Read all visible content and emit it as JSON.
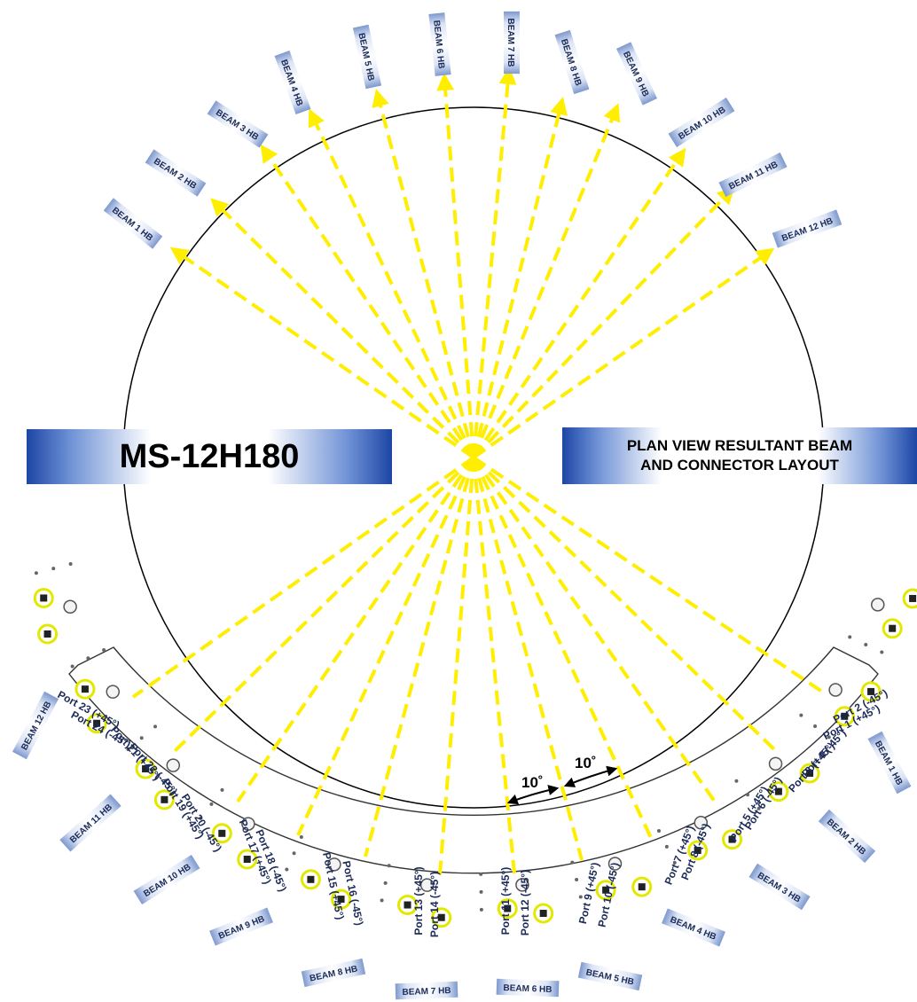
{
  "title": "MS-12H180",
  "subtitle_line1": "PLAN VIEW RESULTANT BEAM",
  "subtitle_line2": "AND CONNECTOR LAYOUT",
  "colors": {
    "beam_line": "#ffee00",
    "banner_dark": "#1c46a5",
    "tag_gradient": "#7e99cf",
    "port_ring": "#e3e800",
    "label_text": "#1b2a57"
  },
  "beams": [
    "BEAM 1 HB",
    "BEAM 2 HB",
    "BEAM 3 HB",
    "BEAM 4 HB",
    "BEAM 5 HB",
    "BEAM 6 HB",
    "BEAM 7 HB",
    "BEAM 8 HB",
    "BEAM 9 HB",
    "BEAM 10 HB",
    "BEAM 11 HB",
    "BEAM 12 HB"
  ],
  "ports": [
    "Port 1 (+45°)",
    "Port 2 (-45°)",
    "Port 3 (+45°)",
    "Port 4 (-45°)",
    "Port 5 (+45°)",
    "Port 6 (-45°)",
    "Port 7 (+45°)",
    "Port 8 (-45°)",
    "Port 9 (+45°)",
    "Port 10 (-45°)",
    "Port 11 (+45°)",
    "Port 12 (-45°)",
    "Port 13 (+45°)",
    "Port 14 (-45°)",
    "Port 15 (+45°)",
    "Port 16 (-45°)",
    "Port 17 (+45°)",
    "Port 18 (-45°)",
    "Port 19 (+45°)",
    "Port 20 (-45°)",
    "Port 21 (+45°)",
    "Port 22 (-45°)",
    "Port 23 (+45°)",
    "Port 24 (-45°)"
  ],
  "angle_label": "10˚",
  "beam_spacing_deg": 10
}
